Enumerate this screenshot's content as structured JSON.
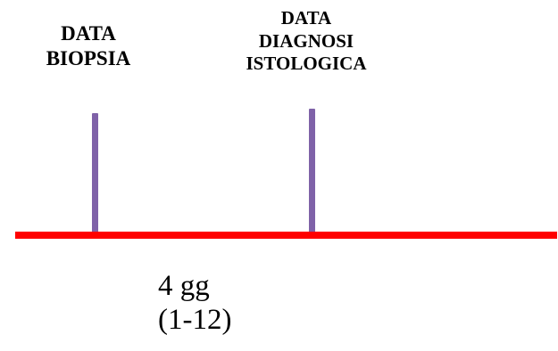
{
  "events": [
    {
      "lines": [
        "DATA",
        "BIOPSIA"
      ]
    },
    {
      "lines": [
        "DATA",
        "DIAGNOSI",
        "ISTOLOGICA"
      ]
    }
  ],
  "interval": {
    "value": "4 gg",
    "range": "(1-12)"
  },
  "colors": {
    "timeline": "#ff0000",
    "marker": "#7f62a8",
    "text": "#000000"
  }
}
